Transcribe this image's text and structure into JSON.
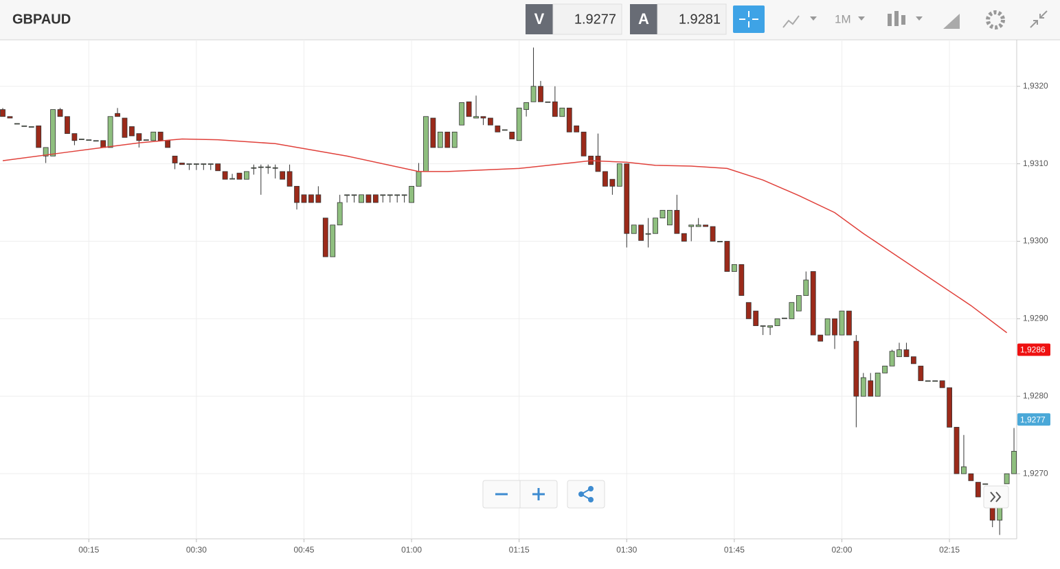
{
  "toolbar": {
    "symbol": "GBPAUD",
    "sell_label": "V",
    "sell": "1.9277",
    "buy_label": "A",
    "buy": "1.9281",
    "timeframe": "1M"
  },
  "chart_data": {
    "type": "candlestick",
    "up_color": "#8fbf7f",
    "down_color": "#9b2a1a",
    "grid": true,
    "ylim": [
      1.92616,
      1.9326
    ],
    "yticks": [
      {
        "value": 1.927,
        "label": "1,9270"
      },
      {
        "value": 1.928,
        "label": "1,9280"
      },
      {
        "value": 1.929,
        "label": "1,9290"
      },
      {
        "value": 1.93,
        "label": "1,9300"
      },
      {
        "value": 1.931,
        "label": "1,9310"
      },
      {
        "value": 1.932,
        "label": "1,9320"
      }
    ],
    "xticks": [
      "00:15",
      "00:30",
      "00:45",
      "01:00",
      "01:15",
      "01:30",
      "01:45",
      "02:00",
      "02:15"
    ],
    "x": [
      "00:03",
      "00:04",
      "00:05",
      "00:06",
      "00:07",
      "00:08",
      "00:09",
      "00:10",
      "00:11",
      "00:12",
      "00:13",
      "00:14",
      "00:15",
      "00:16",
      "00:17",
      "00:18",
      "00:19",
      "00:20",
      "00:21",
      "00:22",
      "00:23",
      "00:24",
      "00:25",
      "00:26",
      "00:27",
      "00:28",
      "00:29",
      "00:30",
      "00:31",
      "00:32",
      "00:33",
      "00:34",
      "00:35",
      "00:36",
      "00:37",
      "00:38",
      "00:39",
      "00:40",
      "00:41",
      "00:42",
      "00:43",
      "00:44",
      "00:45",
      "00:46",
      "00:47",
      "00:48",
      "00:49",
      "00:50",
      "00:51",
      "00:52",
      "00:53",
      "00:54",
      "00:55",
      "00:56",
      "00:57",
      "00:58",
      "00:59",
      "01:00",
      "01:01",
      "01:02",
      "01:03",
      "01:04",
      "01:05",
      "01:06",
      "01:07",
      "01:08",
      "01:09",
      "01:10",
      "01:11",
      "01:12",
      "01:13",
      "01:14",
      "01:15",
      "01:16",
      "01:17",
      "01:18",
      "01:19",
      "01:20",
      "01:21",
      "01:22",
      "01:23",
      "01:24",
      "01:25",
      "01:26",
      "01:27",
      "01:28",
      "01:29",
      "01:30",
      "01:31",
      "01:32",
      "01:33",
      "01:34",
      "01:35",
      "01:36",
      "01:37",
      "01:38",
      "01:39",
      "01:40",
      "01:41",
      "01:42",
      "01:43",
      "01:44",
      "01:45",
      "01:46",
      "01:47",
      "01:48",
      "01:49",
      "01:50",
      "01:51",
      "01:52",
      "01:53",
      "01:54",
      "01:55",
      "01:56",
      "01:57",
      "01:58",
      "01:59",
      "02:00",
      "02:01",
      "02:02",
      "02:03",
      "02:04",
      "02:05",
      "02:06",
      "02:07",
      "02:08",
      "02:09",
      "02:10",
      "02:11",
      "02:12",
      "02:13",
      "02:14",
      "02:15",
      "02:16",
      "02:17",
      "02:18",
      "02:19",
      "02:20",
      "02:21",
      "02:22",
      "02:23",
      "02:24"
    ],
    "open": [
      1.9317,
      1.93161,
      1.93152,
      1.93149,
      1.93148,
      1.93149,
      1.9311,
      1.9311,
      1.9317,
      1.93161,
      1.93139,
      1.93132,
      1.93131,
      1.9313,
      1.9313,
      1.93121,
      1.93165,
      1.93159,
      1.93148,
      1.93139,
      1.93131,
      1.9313,
      1.93141,
      1.9313,
      1.9311,
      1.93101,
      1.931,
      1.931,
      1.931,
      1.931,
      1.931,
      1.9309,
      1.93081,
      1.93088,
      1.9308,
      1.93095,
      1.93096,
      1.93096,
      1.93095,
      1.9309,
      1.9309,
      1.93071,
      1.9306,
      1.9306,
      1.9306,
      1.9303,
      1.9298,
      1.93021,
      1.9306,
      1.9306,
      1.9305,
      1.9306,
      1.9306,
      1.9306,
      1.9306,
      1.9306,
      1.9306,
      1.9305,
      1.93071,
      1.9309,
      1.93159,
      1.93121,
      1.93141,
      1.93121,
      1.9315,
      1.9318,
      1.93159,
      1.93161,
      1.93159,
      1.93149,
      1.93144,
      1.93141,
      1.9313,
      1.9317,
      1.9318,
      1.932,
      1.9318,
      1.9318,
      1.93161,
      1.93172,
      1.93149,
      1.93141,
      1.9311,
      1.9311,
      1.9309,
      1.9308,
      1.93071,
      1.931,
      1.9301,
      1.93021,
      1.93009,
      1.9301,
      1.9303,
      1.93021,
      1.9304,
      1.9301,
      1.93019,
      1.93019,
      1.93021,
      1.93019,
      1.93,
      1.93,
      1.92961,
      1.9297,
      1.92921,
      1.9291,
      1.92891,
      1.92889,
      1.92891,
      1.92901,
      1.929,
      1.9291,
      1.9293,
      1.92961,
      1.92879,
      1.92879,
      1.929,
      1.92879,
      1.9291,
      1.92871,
      1.928,
      1.9282,
      1.928,
      1.9283,
      1.92839,
      1.92851,
      1.9286,
      1.92851,
      1.92839,
      1.9282,
      1.9282,
      1.9282,
      1.92811,
      1.9276,
      1.927,
      1.927,
      1.92689,
      1.92687,
      1.9266,
      1.9264,
      1.92687,
      1.927
    ],
    "high": [
      1.93172,
      1.93161,
      1.93152,
      1.93149,
      1.93148,
      1.93149,
      1.93121,
      1.9317,
      1.93172,
      1.93161,
      1.93139,
      1.93132,
      1.93131,
      1.9313,
      1.9313,
      1.93161,
      1.93172,
      1.93159,
      1.93148,
      1.93139,
      1.93131,
      1.93141,
      1.93141,
      1.9313,
      1.9311,
      1.93101,
      1.931,
      1.931,
      1.931,
      1.931,
      1.931,
      1.9309,
      1.93087,
      1.93088,
      1.9309,
      1.93099,
      1.93099,
      1.93099,
      1.93099,
      1.9309,
      1.93099,
      1.93071,
      1.9306,
      1.9306,
      1.93071,
      1.9303,
      1.93021,
      1.9306,
      1.9306,
      1.9306,
      1.9306,
      1.9306,
      1.9306,
      1.9306,
      1.9306,
      1.9306,
      1.9306,
      1.93071,
      1.93101,
      1.93161,
      1.93159,
      1.93141,
      1.93141,
      1.93141,
      1.93179,
      1.9318,
      1.93188,
      1.93161,
      1.93159,
      1.93149,
      1.93144,
      1.93141,
      1.93172,
      1.93179,
      1.9325,
      1.93207,
      1.9318,
      1.932,
      1.93172,
      1.93172,
      1.93149,
      1.93141,
      1.9311,
      1.93139,
      1.9309,
      1.9308,
      1.931,
      1.931,
      1.93021,
      1.93021,
      1.9303,
      1.9303,
      1.9304,
      1.9304,
      1.9306,
      1.9301,
      1.93021,
      1.9303,
      1.93021,
      1.93019,
      1.93,
      1.93,
      1.9297,
      1.9297,
      1.92921,
      1.9291,
      1.92891,
      1.92891,
      1.929,
      1.92901,
      1.92921,
      1.9293,
      1.92961,
      1.92961,
      1.92879,
      1.929,
      1.929,
      1.9291,
      1.9291,
      1.92879,
      1.9283,
      1.9283,
      1.9283,
      1.92839,
      1.9286,
      1.92869,
      1.92869,
      1.92851,
      1.92839,
      1.9282,
      1.9282,
      1.9282,
      1.92811,
      1.9276,
      1.9275,
      1.927,
      1.92689,
      1.92687,
      1.9266,
      1.9266,
      1.927,
      1.92759
    ],
    "low": [
      1.93161,
      1.93159,
      1.93152,
      1.93149,
      1.93148,
      1.93121,
      1.93101,
      1.9311,
      1.93161,
      1.93139,
      1.93124,
      1.93132,
      1.93131,
      1.9313,
      1.93121,
      1.93121,
      1.93161,
      1.93134,
      1.93136,
      1.93121,
      1.93131,
      1.9313,
      1.9313,
      1.93121,
      1.93093,
      1.93099,
      1.93092,
      1.93092,
      1.93092,
      1.93092,
      1.93091,
      1.9308,
      1.93081,
      1.9308,
      1.9308,
      1.93086,
      1.9306,
      1.93087,
      1.93081,
      1.9308,
      1.93071,
      1.93041,
      1.9305,
      1.9305,
      1.9305,
      1.9298,
      1.9298,
      1.93021,
      1.9305,
      1.9305,
      1.9305,
      1.9305,
      1.9305,
      1.9305,
      1.9305,
      1.9305,
      1.9305,
      1.9305,
      1.93071,
      1.9309,
      1.93121,
      1.93121,
      1.93121,
      1.93121,
      1.9315,
      1.93161,
      1.93159,
      1.9315,
      1.9315,
      1.93141,
      1.93144,
      1.93132,
      1.9313,
      1.93161,
      1.9318,
      1.9318,
      1.9318,
      1.93161,
      1.93161,
      1.93141,
      1.93141,
      1.9311,
      1.93099,
      1.9309,
      1.93071,
      1.9306,
      1.93071,
      1.92992,
      1.9301,
      1.93001,
      1.92992,
      1.9301,
      1.9303,
      1.93021,
      1.9301,
      1.93,
      1.93,
      1.93019,
      1.93019,
      1.93,
      1.93,
      1.92961,
      1.92961,
      1.9293,
      1.929,
      1.92891,
      1.92879,
      1.92879,
      1.92891,
      1.92901,
      1.929,
      1.9291,
      1.9293,
      1.92879,
      1.92871,
      1.92879,
      1.92861,
      1.92879,
      1.92879,
      1.9276,
      1.928,
      1.928,
      1.928,
      1.9283,
      1.92839,
      1.92851,
      1.92851,
      1.92842,
      1.9282,
      1.9282,
      1.9282,
      1.92811,
      1.9276,
      1.927,
      1.927,
      1.92691,
      1.9267,
      1.92687,
      1.92631,
      1.92621,
      1.92687,
      1.927
    ],
    "close": [
      1.93161,
      1.93159,
      1.93152,
      1.93149,
      1.93148,
      1.93121,
      1.93121,
      1.9317,
      1.93161,
      1.93139,
      1.9313,
      1.93132,
      1.93131,
      1.9313,
      1.93121,
      1.93161,
      1.93161,
      1.93134,
      1.93136,
      1.9313,
      1.93131,
      1.93141,
      1.9313,
      1.93121,
      1.93101,
      1.93099,
      1.931,
      1.931,
      1.931,
      1.931,
      1.93091,
      1.9308,
      1.93081,
      1.9308,
      1.9309,
      1.93095,
      1.93096,
      1.93096,
      1.93095,
      1.9308,
      1.93071,
      1.9305,
      1.9305,
      1.9305,
      1.9305,
      1.9298,
      1.93021,
      1.9305,
      1.9306,
      1.9306,
      1.9306,
      1.9305,
      1.9305,
      1.9306,
      1.9306,
      1.9306,
      1.9306,
      1.93071,
      1.9309,
      1.93161,
      1.93121,
      1.93141,
      1.93121,
      1.93141,
      1.93179,
      1.93161,
      1.93161,
      1.93159,
      1.9315,
      1.93141,
      1.93144,
      1.93132,
      1.93172,
      1.93179,
      1.932,
      1.9318,
      1.9318,
      1.93161,
      1.93172,
      1.93141,
      1.93141,
      1.9311,
      1.93099,
      1.9309,
      1.93071,
      1.93071,
      1.931,
      1.9301,
      1.93021,
      1.93001,
      1.9301,
      1.9303,
      1.9304,
      1.9304,
      1.9301,
      1.93,
      1.93021,
      1.93021,
      1.93019,
      1.93,
      1.93,
      1.92961,
      1.9297,
      1.9293,
      1.929,
      1.92891,
      1.92891,
      1.92891,
      1.929,
      1.92901,
      1.92921,
      1.9293,
      1.9295,
      1.92879,
      1.92871,
      1.929,
      1.92879,
      1.9291,
      1.92879,
      1.928,
      1.92824,
      1.928,
      1.9283,
      1.92839,
      1.92858,
      1.9286,
      1.92851,
      1.92842,
      1.9282,
      1.9282,
      1.9282,
      1.92811,
      1.9276,
      1.927,
      1.92709,
      1.92691,
      1.9267,
      1.92687,
      1.9264,
      1.9266,
      1.927,
      1.92729
    ],
    "ma": {
      "color": "#e0403a",
      "x": [
        "00:03",
        "00:12",
        "00:22",
        "00:28",
        "00:33",
        "00:41",
        "00:51",
        "01:01",
        "01:05",
        "01:15",
        "01:25",
        "01:30",
        "01:34",
        "01:39",
        "01:44",
        "01:49",
        "01:54",
        "01:59",
        "02:03",
        "02:08",
        "02:13",
        "02:18",
        "02:23"
      ],
      "values": [
        1.93104,
        1.93115,
        1.93127,
        1.93132,
        1.93131,
        1.93126,
        1.9311,
        1.9309,
        1.9309,
        1.93094,
        1.93104,
        1.93102,
        1.93098,
        1.93097,
        1.93094,
        1.93079,
        1.93059,
        1.93037,
        1.9301,
        1.92979,
        1.92948,
        1.92917,
        1.92882
      ]
    },
    "price_tags": [
      {
        "value": 1.9286,
        "label": "1,9286",
        "color": "#ee1111"
      },
      {
        "value": 1.9277,
        "label": "1,9277",
        "color": "#4aa8d8"
      }
    ]
  }
}
